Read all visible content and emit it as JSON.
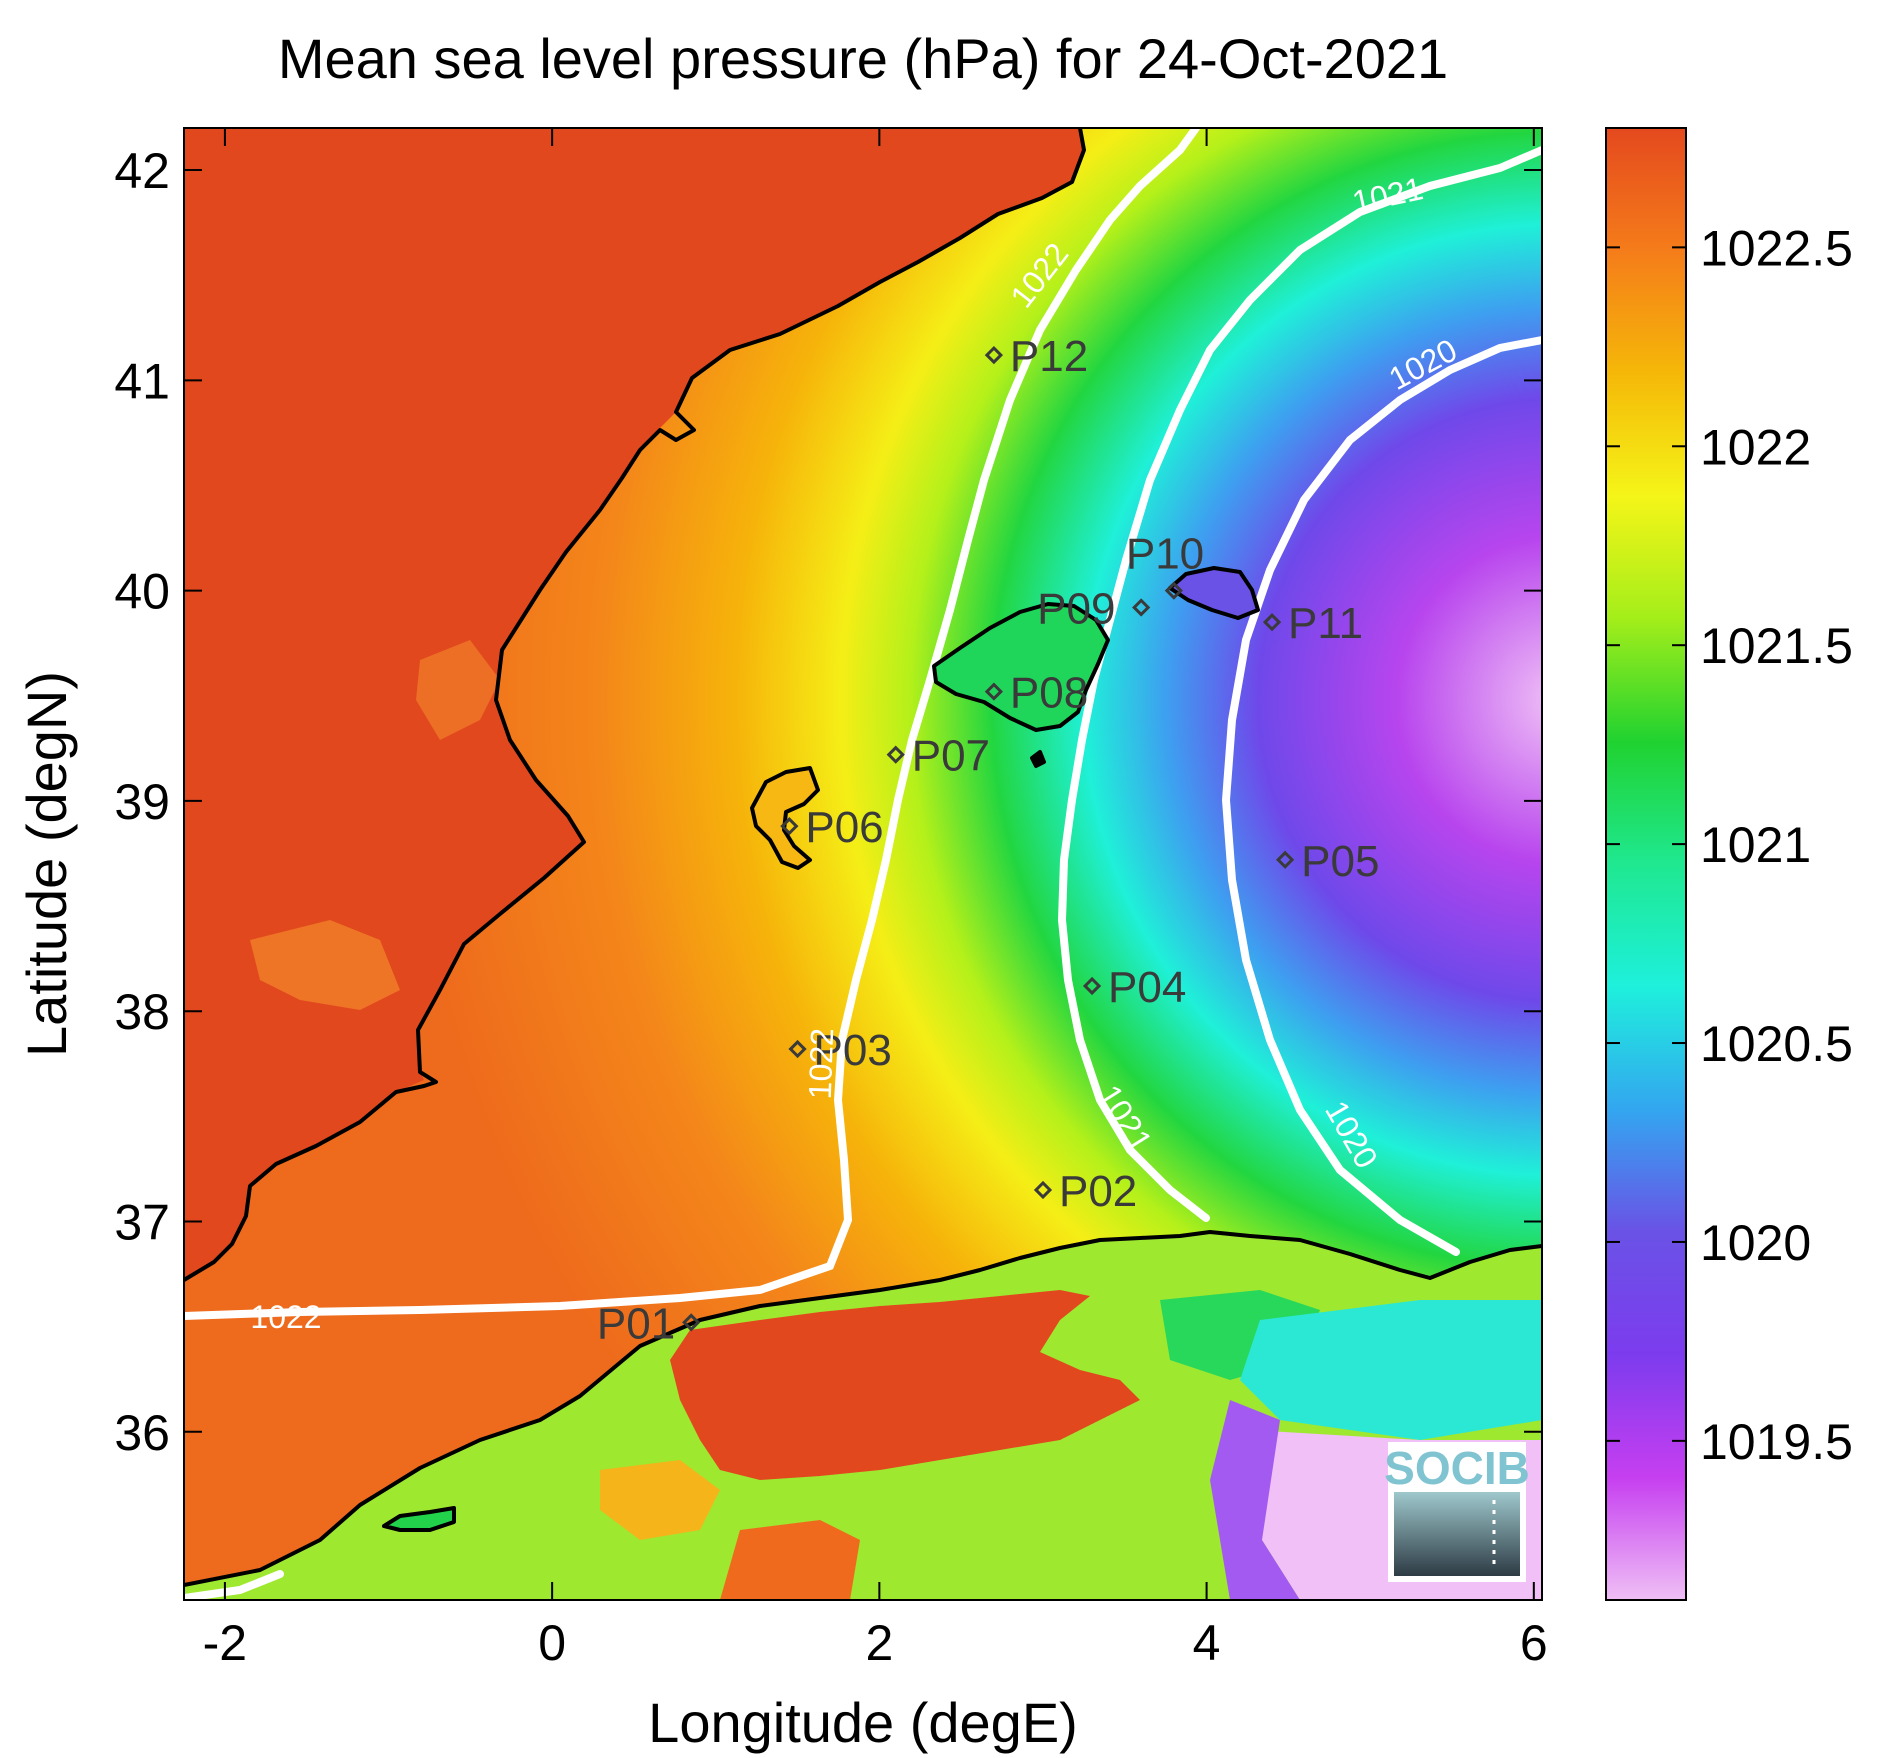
{
  "title": "Mean sea level pressure (hPa) for 24-Oct-2021",
  "x_axis": {
    "label": "Longitude (degE)",
    "range": [
      -2.25,
      6.05
    ],
    "ticks": [
      -2,
      0,
      2,
      4,
      6
    ],
    "tick_labels": [
      "-2",
      "0",
      "2",
      "4",
      "6"
    ]
  },
  "y_axis": {
    "label": "Latitude (degN)",
    "range": [
      35.2,
      42.2
    ],
    "ticks": [
      36,
      37,
      38,
      39,
      40,
      41,
      42
    ],
    "tick_labels": [
      "36",
      "37",
      "38",
      "39",
      "40",
      "41",
      "42"
    ]
  },
  "colorbar": {
    "range": [
      1019.1,
      1022.8
    ],
    "ticks": [
      1019.5,
      1020,
      1020.5,
      1021,
      1021.5,
      1022,
      1022.5
    ],
    "tick_labels": [
      "1019.5",
      "1020",
      "1020.5",
      "1021",
      "1021.5",
      "1022",
      "1022.5"
    ],
    "stops": [
      "#efbff5",
      "#c63ff0",
      "#7c3cee",
      "#6a52e6",
      "#33a6f0",
      "#1ef0dc",
      "#1fe890",
      "#20d230",
      "#a4ee1a",
      "#f5f518",
      "#f5b808",
      "#f57c1a",
      "#e4491e"
    ]
  },
  "contour_labels": [
    "1022",
    "1022",
    "1022",
    "1021",
    "1021",
    "1020",
    "1020"
  ],
  "points": [
    {
      "id": "P01",
      "lon": 0.85,
      "lat": 36.52,
      "label": "P01"
    },
    {
      "id": "P02",
      "lon": 3.0,
      "lat": 37.15,
      "label": "P02"
    },
    {
      "id": "P03",
      "lon": 1.5,
      "lat": 37.82,
      "label": "P03"
    },
    {
      "id": "P04",
      "lon": 3.3,
      "lat": 38.12,
      "label": "P04"
    },
    {
      "id": "P05",
      "lon": 4.48,
      "lat": 38.72,
      "label": "P05"
    },
    {
      "id": "P06",
      "lon": 1.45,
      "lat": 38.88,
      "label": "P06"
    },
    {
      "id": "P07",
      "lon": 2.1,
      "lat": 39.22,
      "label": "P07"
    },
    {
      "id": "P08",
      "lon": 2.7,
      "lat": 39.52,
      "label": "P08"
    },
    {
      "id": "P09",
      "lon": 3.6,
      "lat": 39.92,
      "label": "P09"
    },
    {
      "id": "P10",
      "lon": 3.8,
      "lat": 40.0,
      "label": "P10"
    },
    {
      "id": "P11",
      "lon": 4.4,
      "lat": 39.85,
      "label": "P11"
    },
    {
      "id": "P12",
      "lon": 2.7,
      "lat": 41.12,
      "label": "P12"
    }
  ],
  "logo": {
    "text": "SOCIB"
  }
}
